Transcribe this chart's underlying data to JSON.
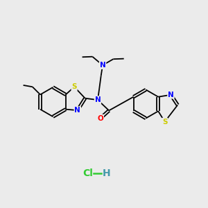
{
  "background_color": "#ebebeb",
  "bond_color": "#000000",
  "atom_colors": {
    "N": "#0000ff",
    "S": "#cccc00",
    "O": "#ff0000",
    "C": "#000000",
    "Cl": "#33cc33",
    "H": "#4499aa"
  },
  "hcl_color": "#33cc33",
  "h_color": "#4499aa",
  "figsize": [
    3.0,
    3.0
  ],
  "dpi": 100
}
